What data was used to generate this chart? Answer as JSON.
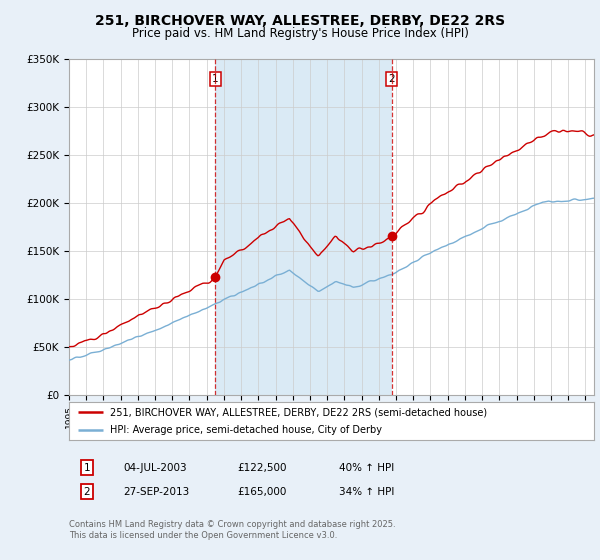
{
  "title": "251, BIRCHOVER WAY, ALLESTREE, DERBY, DE22 2RS",
  "subtitle": "Price paid vs. HM Land Registry's House Price Index (HPI)",
  "legend_line1": "251, BIRCHOVER WAY, ALLESTREE, DERBY, DE22 2RS (semi-detached house)",
  "legend_line2": "HPI: Average price, semi-detached house, City of Derby",
  "transaction1": {
    "label": "1",
    "date": "04-JUL-2003",
    "price": 122500,
    "year": 2003.5,
    "pct": "40% ↑ HPI"
  },
  "transaction2": {
    "label": "2",
    "date": "27-SEP-2013",
    "price": 165000,
    "year": 2013.75,
    "pct": "34% ↑ HPI"
  },
  "footer": "Contains HM Land Registry data © Crown copyright and database right 2025.\nThis data is licensed under the Open Government Licence v3.0.",
  "ylim": [
    0,
    350000
  ],
  "yticks": [
    0,
    50000,
    100000,
    150000,
    200000,
    250000,
    300000,
    350000
  ],
  "ytick_labels": [
    "£0",
    "£50K",
    "£100K",
    "£150K",
    "£200K",
    "£250K",
    "£300K",
    "£350K"
  ],
  "xlim_start": 1995.0,
  "xlim_end": 2025.5,
  "red_color": "#cc0000",
  "blue_color": "#7aafd4",
  "shade_color": "#daeaf5",
  "bg_color": "#e8f0f8",
  "plot_bg": "#ffffff",
  "grid_color": "#cccccc"
}
